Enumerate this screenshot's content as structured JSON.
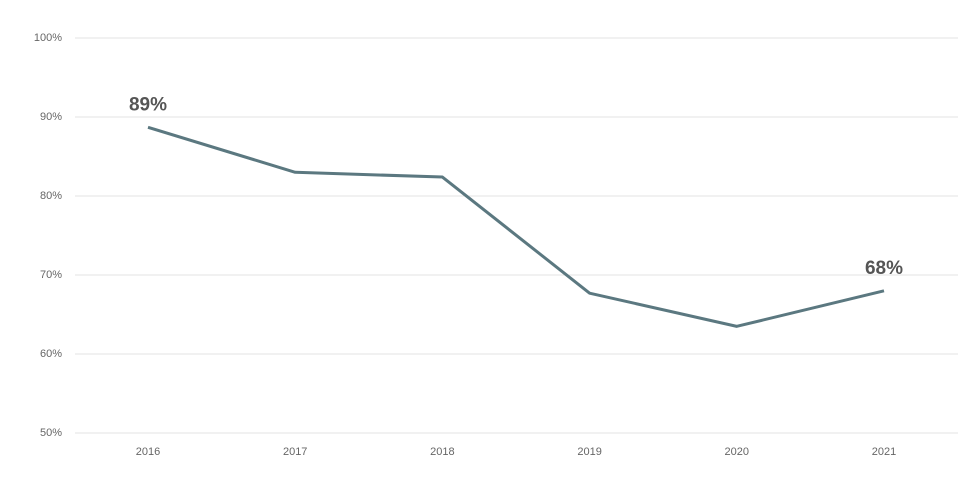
{
  "chart_data": {
    "type": "line",
    "categories": [
      "2016",
      "2017",
      "2018",
      "2019",
      "2020",
      "2021"
    ],
    "series": [
      {
        "color": "#5b7880",
        "values": [
          88.7,
          83.0,
          82.4,
          67.7,
          63.5,
          68.0
        ],
        "value_labels": [
          "89%",
          null,
          null,
          null,
          null,
          "68%"
        ]
      }
    ],
    "ylim": [
      50,
      100
    ],
    "yticks": [
      {
        "value": 50,
        "label": "50%"
      },
      {
        "value": 60,
        "label": "60%"
      },
      {
        "value": 70,
        "label": "70%"
      },
      {
        "value": 80,
        "label": "80%"
      },
      {
        "value": 90,
        "label": "90%"
      },
      {
        "value": 100,
        "label": "100%"
      }
    ],
    "grid": true
  }
}
